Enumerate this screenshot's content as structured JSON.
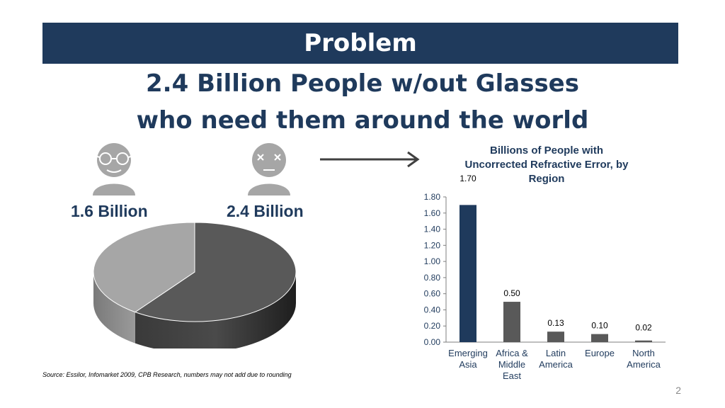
{
  "slide": {
    "title": "Problem",
    "subtitle_line1": "2.4 Billion People w/out Glasses",
    "subtitle_line2": "who need them around the world",
    "source": "Source: Essilor, Infomarket 2009, CPB Research, numbers may not add due to rounding",
    "page_number": "2"
  },
  "people": {
    "with_glasses": {
      "label": "1.6 Billion",
      "icon": "person-with-glasses-icon"
    },
    "without_glasses": {
      "label": "2.4 Billion",
      "icon": "person-without-glasses-icon"
    }
  },
  "pie_data": {
    "type": "pie",
    "slices": [
      {
        "value": 1.6,
        "color": "#a6a6a6"
      },
      {
        "value": 2.4,
        "color": "#595959"
      }
    ]
  },
  "chart_data": {
    "type": "bar",
    "title": "Billions of People with Uncorrected Refractive Error, by Region",
    "categories": [
      "Emerging Asia",
      "Africa & Middle East",
      "Latin America",
      "Europe",
      "North America"
    ],
    "values": [
      1.7,
      0.5,
      0.13,
      0.1,
      0.02
    ],
    "value_labels": [
      "1.70",
      "0.50",
      "0.13",
      "0.10",
      "0.02"
    ],
    "bar_colors": [
      "#1f3a5c",
      "#595959",
      "#595959",
      "#595959",
      "#595959"
    ],
    "ylim": [
      0,
      1.8
    ],
    "yticks": [
      "0.00",
      "0.20",
      "0.40",
      "0.60",
      "0.80",
      "1.00",
      "1.20",
      "1.40",
      "1.60",
      "1.80"
    ],
    "xlabel": "",
    "ylabel": "",
    "grid": false,
    "legend": "none"
  }
}
